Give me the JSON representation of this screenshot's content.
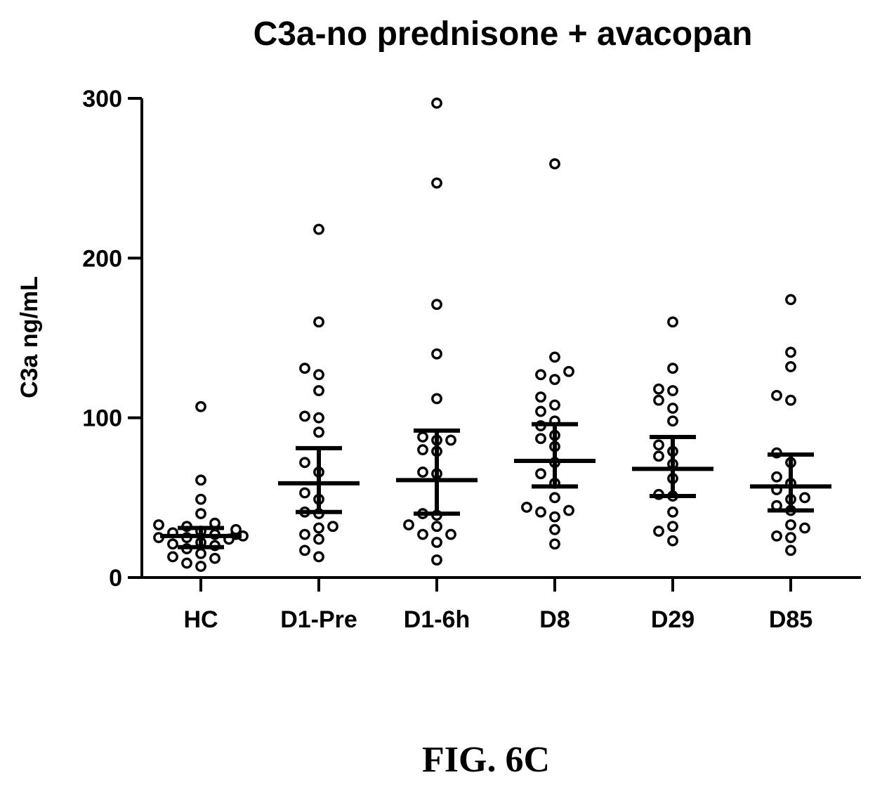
{
  "figure_label": "FIG. 6C",
  "chart_data": {
    "type": "scatter",
    "title": "C3a-no prednisone + avacopan",
    "xlabel": "",
    "ylabel": "C3a ng/mL",
    "ylim": [
      0,
      300
    ],
    "yticks": [
      0,
      100,
      200,
      300
    ],
    "categories": [
      "HC",
      "D1-Pre",
      "D1-6h",
      "D8",
      "D29",
      "D85"
    ],
    "groups": [
      {
        "category": "HC",
        "values": [
          107,
          61,
          49,
          40,
          34,
          33,
          32,
          30,
          29,
          28,
          27,
          27,
          26,
          25,
          25,
          24,
          22,
          21,
          20,
          18,
          15,
          13,
          12,
          9,
          7
        ],
        "mean": 26,
        "sd_low": 19,
        "sd_high": 31
      },
      {
        "category": "D1-Pre",
        "values": [
          218,
          160,
          131,
          127,
          117,
          101,
          100,
          91,
          72,
          66,
          53,
          49,
          41,
          40,
          32,
          31,
          27,
          24,
          17,
          13
        ],
        "mean": 59,
        "sd_low": 41,
        "sd_high": 81
      },
      {
        "category": "D1-6h",
        "values": [
          297,
          247,
          171,
          140,
          112,
          88,
          86,
          86,
          80,
          79,
          66,
          65,
          40,
          39,
          33,
          32,
          27,
          27,
          22,
          11
        ],
        "mean": 61,
        "sd_low": 40,
        "sd_high": 92
      },
      {
        "category": "D8",
        "values": [
          259,
          138,
          129,
          127,
          124,
          113,
          108,
          104,
          98,
          95,
          89,
          87,
          82,
          72,
          65,
          59,
          50,
          44,
          42,
          41,
          38,
          30,
          21
        ],
        "mean": 73,
        "sd_low": 57,
        "sd_high": 96
      },
      {
        "category": "D29",
        "values": [
          160,
          131,
          118,
          117,
          111,
          106,
          98,
          83,
          79,
          76,
          71,
          62,
          52,
          51,
          41,
          32,
          29,
          23
        ],
        "mean": 68,
        "sd_low": 51,
        "sd_high": 88
      },
      {
        "category": "D85",
        "values": [
          174,
          141,
          132,
          114,
          111,
          78,
          72,
          63,
          59,
          55,
          50,
          49,
          45,
          42,
          33,
          31,
          26,
          25,
          17
        ],
        "mean": 57,
        "sd_low": 42,
        "sd_high": 77
      }
    ]
  }
}
